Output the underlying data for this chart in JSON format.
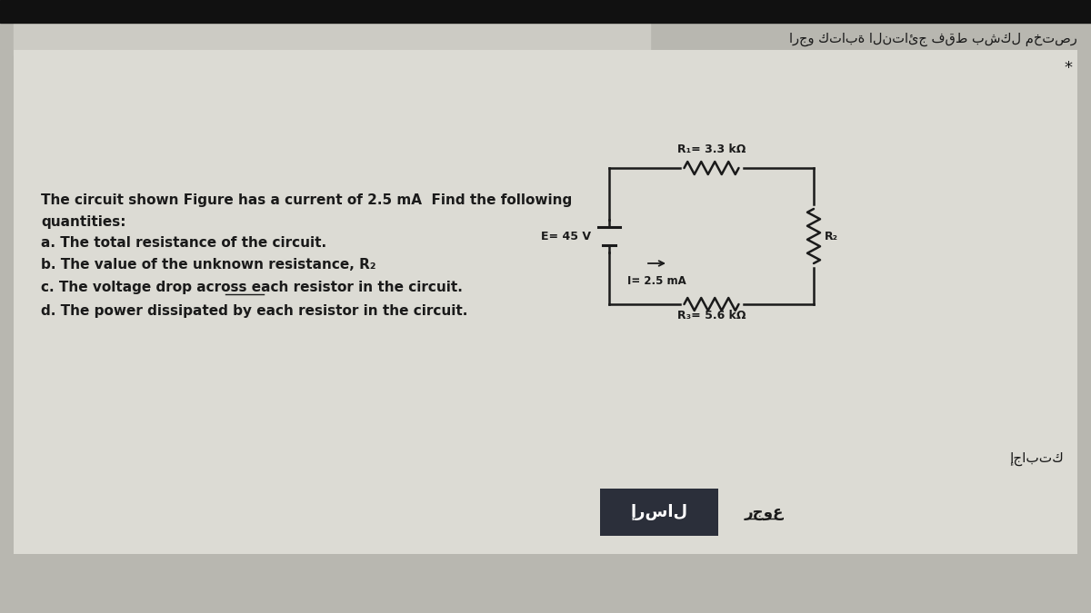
{
  "bg_outer": "#a8a8a8",
  "bg_top_bar": "#111111",
  "bg_page": "#b8b7b0",
  "bg_card": "#dcdbd4",
  "bg_inner_card": "#d5d4cc",
  "arabic_top": "ارجو كتابة النتائج فقط بشكل مختصر",
  "q_line1": "The circuit shown Figure has a current of 2.5 mA  Find the following",
  "q_line2": "quantities:",
  "item_a": "a. The total resistance of the circuit.",
  "item_b": "b. The value of the unknown resistance, R₂",
  "item_c": "c. The voltage drop across each resistor in the circuit.",
  "item_d": "d. The power dissipated by each resistor in the circuit.",
  "circuit_R1": "R₁= 3.3 kΩ",
  "circuit_E": "E= 45 V",
  "circuit_I": "I= 2.5 mA",
  "circuit_R2_label": "R₂",
  "circuit_R3": "R₃= 5.6 kΩ",
  "arabic_ijabatk": "إجابتك",
  "btn_send_text": "إرسال",
  "btn_back_text": "رجوع",
  "star": "*",
  "text_dark": "#1a1a1a",
  "circuit_lw": 1.8,
  "btn_send_bg": "#2b2f3a",
  "btn_send_fg": "#ffffff"
}
